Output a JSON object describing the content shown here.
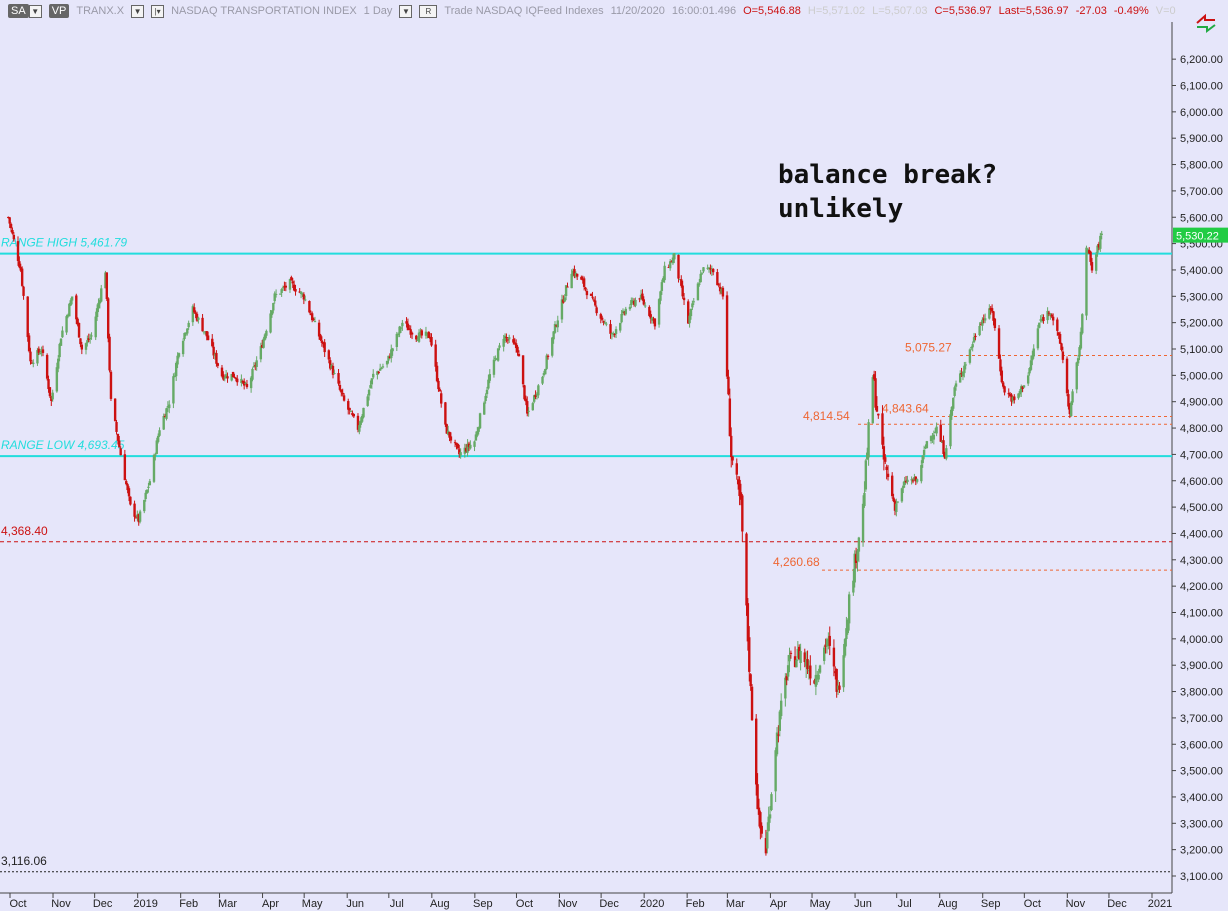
{
  "toolbar": {
    "sa": "SA",
    "vp": "VP",
    "symbol": "TRANX.X",
    "name": "NASDAQ TRANSPORTATION INDEX",
    "interval": "1 Day",
    "r_button": "R",
    "feed": "Trade  NASDAQ  IQFeed  Indexes",
    "date": "11/20/2020",
    "time": "16:00:01.496",
    "open": "O=5,546.88",
    "high": "H=5,571.02",
    "low": "L=5,507.03",
    "close": "C=5,536.97",
    "last": "Last=5,536.97",
    "change": "-27.03",
    "change_pct": "-0.49%",
    "volume": "V=0"
  },
  "annotation": {
    "line1": "balance break?",
    "line2": "unlikely"
  },
  "price_tag": "5,530.22",
  "colors": {
    "background": "#e6e6fa",
    "up_candle": "#66aa66",
    "down_candle": "#cc1111",
    "range_line": "#22dddd",
    "support_line": "#cc1111",
    "level_line": "#ee6633",
    "price_tag": "#22cc44"
  },
  "chart_data": {
    "type": "candlestick",
    "symbol": "TRANX.X",
    "ylim": [
      3080,
      6340
    ],
    "yticks": [
      "3,100.00",
      "3,200.00",
      "3,300.00",
      "3,400.00",
      "3,500.00",
      "3,600.00",
      "3,700.00",
      "3,800.00",
      "3,900.00",
      "4,000.00",
      "4,100.00",
      "4,200.00",
      "4,300.00",
      "4,400.00",
      "4,500.00",
      "4,600.00",
      "4,700.00",
      "4,800.00",
      "4,900.00",
      "5,000.00",
      "5,100.00",
      "5,200.00",
      "5,300.00",
      "5,400.00",
      "5,500.00",
      "5,600.00",
      "5,700.00",
      "5,800.00",
      "5,900.00",
      "6,000.00",
      "6,100.00",
      "6,200.00"
    ],
    "xticks": [
      "Oct",
      "Nov",
      "Dec",
      "2019",
      "Feb",
      "Mar",
      "Apr",
      "May",
      "Jun",
      "Jul",
      "Aug",
      "Sep",
      "Oct",
      "Nov",
      "Dec",
      "2020",
      "Feb",
      "Mar",
      "Apr",
      "May",
      "Jun",
      "Jul",
      "Aug",
      "Sep",
      "Oct",
      "Nov",
      "Dec",
      "2021"
    ],
    "horizontal_lines": [
      {
        "label": "RANGE HIGH 5,461.79",
        "value": 5461.79,
        "style": "solid",
        "color": "#22dddd",
        "labelcolor": "#22dddd"
      },
      {
        "label": "RANGE LOW 4,693.45",
        "value": 4693.45,
        "style": "solid",
        "color": "#22dddd",
        "labelcolor": "#22dddd"
      },
      {
        "label": "4,368.40",
        "value": 4368.4,
        "style": "dashed",
        "color": "#cc1111",
        "labelcolor": "#cc1111"
      },
      {
        "label": "3,116.06",
        "value": 3116.06,
        "style": "dotted",
        "color": "#222222",
        "labelcolor": "#222222"
      }
    ],
    "levels": [
      {
        "label": "5,075.27",
        "value": 5075.27
      },
      {
        "label": "4,843.64",
        "value": 4843.64
      },
      {
        "label": "4,814.54",
        "value": 4814.54
      },
      {
        "label": "4,260.68",
        "value": 4260.68
      }
    ],
    "close_path": [
      [
        "2018-09-24",
        5600
      ],
      [
        "2018-10-03",
        5400
      ],
      [
        "2018-10-10",
        5050
      ],
      [
        "2018-10-18",
        5100
      ],
      [
        "2018-10-25",
        4900
      ],
      [
        "2018-11-01",
        5150
      ],
      [
        "2018-11-09",
        5300
      ],
      [
        "2018-11-16",
        5100
      ],
      [
        "2018-11-23",
        5150
      ],
      [
        "2018-12-03",
        5400
      ],
      [
        "2018-12-07",
        4900
      ],
      [
        "2018-12-14",
        4700
      ],
      [
        "2018-12-21",
        4500
      ],
      [
        "2018-12-27",
        4450
      ],
      [
        "2019-01-04",
        4600
      ],
      [
        "2019-01-11",
        4800
      ],
      [
        "2019-01-18",
        4900
      ],
      [
        "2019-01-25",
        5100
      ],
      [
        "2019-02-04",
        5250
      ],
      [
        "2019-02-14",
        5150
      ],
      [
        "2019-02-25",
        5000
      ],
      [
        "2019-03-06",
        5000
      ],
      [
        "2019-03-15",
        4950
      ],
      [
        "2019-03-25",
        5100
      ],
      [
        "2019-04-04",
        5300
      ],
      [
        "2019-04-15",
        5350
      ],
      [
        "2019-04-25",
        5300
      ],
      [
        "2019-05-06",
        5150
      ],
      [
        "2019-05-17",
        5000
      ],
      [
        "2019-05-24",
        4900
      ],
      [
        "2019-06-03",
        4800
      ],
      [
        "2019-06-14",
        5000
      ],
      [
        "2019-06-24",
        5050
      ],
      [
        "2019-07-05",
        5200
      ],
      [
        "2019-07-15",
        5150
      ],
      [
        "2019-07-25",
        5150
      ],
      [
        "2019-08-05",
        4800
      ],
      [
        "2019-08-15",
        4700
      ],
      [
        "2019-08-26",
        4750
      ],
      [
        "2019-09-06",
        5000
      ],
      [
        "2019-09-16",
        5150
      ],
      [
        "2019-09-26",
        5100
      ],
      [
        "2019-10-03",
        4850
      ],
      [
        "2019-10-14",
        5000
      ],
      [
        "2019-10-24",
        5200
      ],
      [
        "2019-11-04",
        5400
      ],
      [
        "2019-11-12",
        5350
      ],
      [
        "2019-11-22",
        5250
      ],
      [
        "2019-12-03",
        5150
      ],
      [
        "2019-12-13",
        5250
      ],
      [
        "2019-12-23",
        5300
      ],
      [
        "2020-01-03",
        5200
      ],
      [
        "2020-01-10",
        5400
      ],
      [
        "2020-01-17",
        5450
      ],
      [
        "2020-01-27",
        5200
      ],
      [
        "2020-02-06",
        5400
      ],
      [
        "2020-02-14",
        5400
      ],
      [
        "2020-02-21",
        5300
      ],
      [
        "2020-02-27",
        4700
      ],
      [
        "2020-03-05",
        4500
      ],
      [
        "2020-03-12",
        3800
      ],
      [
        "2020-03-18",
        3300
      ],
      [
        "2020-03-23",
        3200
      ],
      [
        "2020-03-30",
        3600
      ],
      [
        "2020-04-08",
        3900
      ],
      [
        "2020-04-17",
        3950
      ],
      [
        "2020-04-27",
        3850
      ],
      [
        "2020-05-06",
        4000
      ],
      [
        "2020-05-14",
        3800
      ],
      [
        "2020-05-22",
        4150
      ],
      [
        "2020-06-01",
        4500
      ],
      [
        "2020-06-08",
        5000
      ],
      [
        "2020-06-15",
        4700
      ],
      [
        "2020-06-24",
        4500
      ],
      [
        "2020-07-02",
        4600
      ],
      [
        "2020-07-10",
        4600
      ],
      [
        "2020-07-17",
        4750
      ],
      [
        "2020-07-24",
        4800
      ],
      [
        "2020-07-30",
        4700
      ],
      [
        "2020-08-06",
        4950
      ],
      [
        "2020-08-14",
        5050
      ],
      [
        "2020-08-24",
        5200
      ],
      [
        "2020-09-02",
        5250
      ],
      [
        "2020-09-10",
        4950
      ],
      [
        "2020-09-18",
        4900
      ],
      [
        "2020-09-28",
        5000
      ],
      [
        "2020-10-06",
        5200
      ],
      [
        "2020-10-14",
        5250
      ],
      [
        "2020-10-22",
        5100
      ],
      [
        "2020-10-28",
        4850
      ],
      [
        "2020-11-05",
        5150
      ],
      [
        "2020-11-09",
        5500
      ],
      [
        "2020-11-13",
        5400
      ],
      [
        "2020-11-20",
        5536.97
      ]
    ]
  }
}
